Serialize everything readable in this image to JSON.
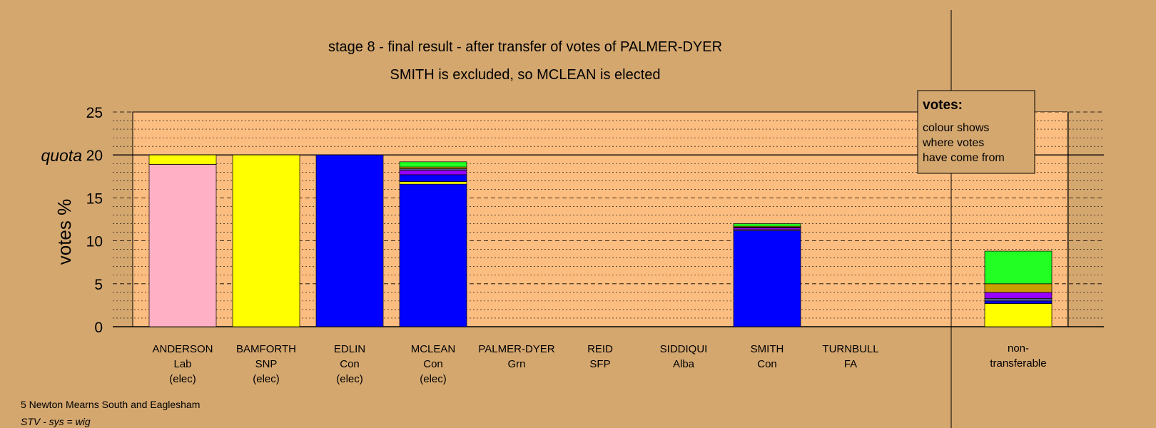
{
  "chart_data": {
    "type": "bar",
    "stacked": true,
    "title": "stage 8 - final result - after transfer of votes of PALMER-DYER",
    "subtitle": "SMITH is excluded, so MCLEAN is elected",
    "ylabel": "votes %",
    "ylim": [
      0,
      25
    ],
    "yticks": [
      "0",
      "5",
      "10",
      "15",
      "20",
      "25"
    ],
    "quota": {
      "label": "quota",
      "value": 20
    },
    "grid": true,
    "legend": {
      "title": "votes:",
      "lines": [
        "colour shows",
        "where votes",
        "have come from"
      ]
    },
    "colors": {
      "Lab": "#ffb0c4",
      "SNP": "#ffff00",
      "Con": "#0000ff",
      "Grn": "#22ff22",
      "Alba": "#9900ff",
      "SFP": "#555599",
      "FA": "#c8a000",
      "background": "#d4a76f",
      "plot": "#fcbd80"
    },
    "categories": [
      {
        "name": "ANDERSON",
        "party": "Lab",
        "status": "(elec)",
        "segments": [
          {
            "source": "Lab",
            "value": 18.9
          },
          {
            "source": "SNP",
            "value": 1.1
          }
        ]
      },
      {
        "name": "BAMFORTH",
        "party": "SNP",
        "status": "(elec)",
        "segments": [
          {
            "source": "SNP",
            "value": 20.0
          }
        ]
      },
      {
        "name": "EDLIN",
        "party": "Con",
        "status": "(elec)",
        "segments": [
          {
            "source": "Con",
            "value": 20.0
          }
        ]
      },
      {
        "name": "MCLEAN",
        "party": "Con",
        "status": "(elec)",
        "segments": [
          {
            "source": "Con",
            "value": 16.6
          },
          {
            "source": "SNP",
            "value": 0.3
          },
          {
            "source": "Con",
            "value": 0.8
          },
          {
            "source": "Alba",
            "value": 0.5
          },
          {
            "source": "SFP",
            "value": 0.2
          },
          {
            "source": "FA",
            "value": 0.2
          },
          {
            "source": "Grn",
            "value": 0.6
          }
        ]
      },
      {
        "name": "PALMER-DYER",
        "party": "Grn",
        "status": "",
        "segments": []
      },
      {
        "name": "REID",
        "party": "SFP",
        "status": "",
        "segments": []
      },
      {
        "name": "SIDDIQUI",
        "party": "Alba",
        "status": "",
        "segments": []
      },
      {
        "name": "SMITH",
        "party": "Con",
        "status": "",
        "segments": [
          {
            "source": "Con",
            "value": 11.2
          },
          {
            "source": "SNP",
            "value": 0.1
          },
          {
            "source": "Alba",
            "value": 0.2
          },
          {
            "source": "SFP",
            "value": 0.1
          },
          {
            "source": "FA",
            "value": 0.1
          },
          {
            "source": "Grn",
            "value": 0.3
          }
        ]
      },
      {
        "name": "TURNBULL",
        "party": "FA",
        "status": "",
        "segments": []
      }
    ],
    "nontransferable": {
      "label_line1": "non-",
      "label_line2": "transferable",
      "segments": [
        {
          "source": "SNP",
          "value": 2.7
        },
        {
          "source": "Con",
          "value": 0.3
        },
        {
          "source": "SFP",
          "value": 0.3
        },
        {
          "source": "Alba",
          "value": 0.7
        },
        {
          "source": "FA",
          "value": 1.0
        },
        {
          "source": "Grn",
          "value": 3.8
        }
      ]
    }
  },
  "footer": {
    "ward": "5 Newton Mearns South and Eaglesham",
    "system": "STV - sys = wig"
  }
}
